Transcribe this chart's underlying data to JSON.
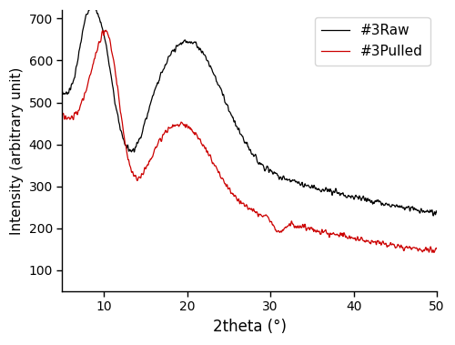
{
  "title": "",
  "xlabel": "2theta (°)",
  "ylabel": "Intensity (arbitrary unit)",
  "xlim": [
    5,
    50
  ],
  "ylim": [
    50,
    720
  ],
  "yticks": [
    100,
    200,
    300,
    400,
    500,
    600,
    700
  ],
  "xticks": [
    10,
    20,
    30,
    40,
    50
  ],
  "raw_color": "#000000",
  "pulled_color": "#cc0000",
  "legend_labels": [
    "#3Raw",
    "#3Pulled"
  ],
  "linewidth": 0.9,
  "figsize": [
    5.0,
    3.79
  ],
  "dpi": 100
}
